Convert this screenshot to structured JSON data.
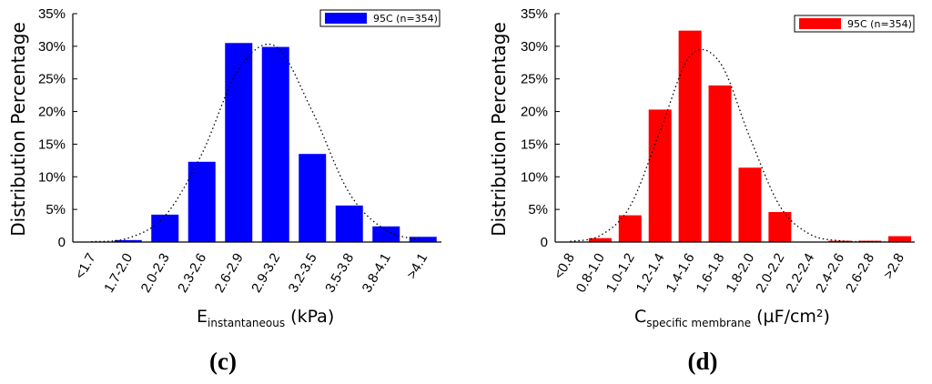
{
  "chart_data": [
    {
      "type": "bar",
      "panel_label": "(c)",
      "color": "#0000ff",
      "categories": [
        "<1.7",
        "1.7-2.0",
        "2.0-2.3",
        "2.3-2.6",
        "2.6-2.9",
        "2.9-3.2",
        "3.2-3.5",
        "3.5-3.8",
        "3.8-4.1",
        ">4.1"
      ],
      "values": [
        0,
        0.3,
        4.2,
        12.3,
        30.5,
        29.9,
        13.5,
        5.6,
        2.4,
        0.8
      ],
      "fit_curve": [
        0.05,
        0.6,
        4.0,
        13.5,
        26.5,
        30.0,
        20.0,
        7.5,
        1.8,
        0.3
      ],
      "ylim": [
        0,
        35
      ],
      "yticks": [
        "0",
        "5%",
        "10%",
        "15%",
        "20%",
        "25%",
        "30%",
        "35%"
      ],
      "ylabel": "Distribution  Percentage",
      "xlabel_main": "E",
      "xlabel_sub": "instantaneous",
      "xlabel_unit": " (kPa)",
      "legend": "95C (n=354)"
    },
    {
      "type": "bar",
      "panel_label": "(d)",
      "color": "#ff0000",
      "categories": [
        "<0.8",
        "0.8-1.0",
        "1.0-1.2",
        "1.2-1.4",
        "1.4-1.6",
        "1.6-1.8",
        "1.8-2.0",
        "2.0-2.2",
        "2.2-2.4",
        "2.4-2.6",
        "2.6-2.8",
        ">2.8"
      ],
      "values": [
        0,
        0.6,
        4.1,
        20.3,
        32.4,
        24.0,
        11.4,
        4.6,
        0,
        0.2,
        0.2,
        0.9
      ],
      "fit_curve": [
        0.1,
        1.0,
        5.5,
        17.0,
        28.5,
        27.5,
        16.0,
        5.5,
        1.2,
        0.2,
        0.05,
        0.0
      ],
      "ylim": [
        0,
        35
      ],
      "yticks": [
        "0",
        "5%",
        "10%",
        "15%",
        "20%",
        "25%",
        "30%",
        "35%"
      ],
      "ylabel": "Distribution  Percentage",
      "xlabel_main": "C",
      "xlabel_sub": "specific membrane",
      "xlabel_unit": " (µF/cm²)",
      "legend": "95C (n=354)"
    }
  ]
}
